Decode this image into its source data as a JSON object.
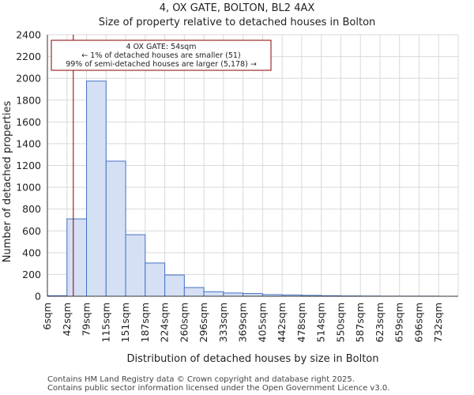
{
  "chart_data": {
    "type": "bar",
    "title": "4, OX GATE, BOLTON, BL2 4AX",
    "subtitle": "Size of property relative to detached houses in Bolton",
    "xlabel": "Distribution of detached houses by size in Bolton",
    "ylabel": "Number of detached properties",
    "categories": [
      "6sqm",
      "42sqm",
      "79sqm",
      "115sqm",
      "151sqm",
      "187sqm",
      "224sqm",
      "260sqm",
      "296sqm",
      "333sqm",
      "369sqm",
      "405sqm",
      "442sqm",
      "478sqm",
      "514sqm",
      "550sqm",
      "587sqm",
      "623sqm",
      "659sqm",
      "696sqm",
      "732sqm"
    ],
    "values": [
      5,
      710,
      1975,
      1240,
      565,
      305,
      195,
      80,
      42,
      30,
      25,
      15,
      12,
      8,
      5,
      3,
      2,
      1,
      1,
      1,
      0
    ],
    "ylim": [
      0,
      2400
    ],
    "yticks": [
      0,
      200,
      400,
      600,
      800,
      1000,
      1200,
      1400,
      1600,
      1800,
      2000,
      2200,
      2400
    ],
    "grid": true,
    "marker_value_sqm": 54,
    "annotation": {
      "line1": "4 OX GATE: 54sqm",
      "line2": "← 1% of detached houses are smaller (51)",
      "line3": "99% of semi-detached houses are larger (5,178) →"
    },
    "colors": {
      "bar_fill": "#d6e0f5",
      "bar_edge": "#4472c4",
      "marker": "#8b0000",
      "grid": "#d9d9d9"
    }
  },
  "footer": {
    "line1": "Contains HM Land Registry data © Crown copyright and database right 2025.",
    "line2": "Contains public sector information licensed under the Open Government Licence v3.0."
  }
}
